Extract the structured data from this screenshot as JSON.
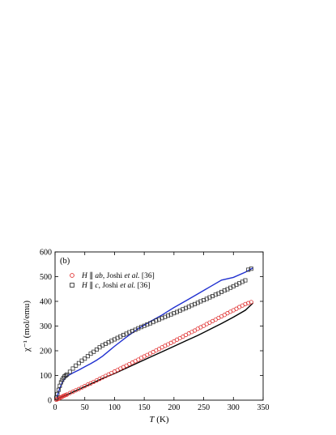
{
  "chart_data": {
    "type": "scatter",
    "panel_label": "(b)",
    "xlabel": {
      "italic": "T",
      "rest": " (K)"
    },
    "ylabel": "χ⁻¹ (mol/emu)",
    "xlim": [
      0,
      350
    ],
    "ylim": [
      0,
      600
    ],
    "xticks": [
      0,
      50,
      100,
      150,
      200,
      250,
      300,
      350
    ],
    "yticks": [
      0,
      100,
      200,
      300,
      400,
      500,
      600
    ],
    "grid": false,
    "legend_position": "top-left",
    "series": [
      {
        "name": "H ∥ ab, Joshi et al. [36]",
        "legend_parts": [
          {
            "text": "H",
            "italic": true
          },
          {
            "text": " ∥ ",
            "italic": false
          },
          {
            "text": "ab",
            "italic": true
          },
          {
            "text": ", Joshi ",
            "italic": false
          },
          {
            "text": "et al.",
            "italic": true
          },
          {
            "text": " [36]",
            "italic": false
          }
        ],
        "marker": "circle",
        "color": "#e03030",
        "x": [
          2,
          4,
          6,
          8,
          10,
          12,
          14,
          16,
          18,
          20,
          25,
          30,
          35,
          40,
          45,
          50,
          55,
          60,
          65,
          70,
          75,
          80,
          85,
          90,
          95,
          100,
          105,
          110,
          115,
          120,
          125,
          130,
          135,
          140,
          145,
          150,
          155,
          160,
          165,
          170,
          175,
          180,
          185,
          190,
          195,
          200,
          205,
          210,
          215,
          220,
          225,
          230,
          235,
          240,
          245,
          250,
          255,
          260,
          265,
          270,
          275,
          280,
          285,
          290,
          295,
          300,
          305,
          310,
          315,
          320,
          325,
          330
        ],
        "y": [
          2,
          4,
          6,
          9,
          12,
          14,
          17,
          19,
          21,
          23,
          29,
          34,
          40,
          45,
          51,
          57,
          63,
          68,
          74,
          80,
          86,
          92,
          98,
          104,
          110,
          116,
          122,
          128,
          134,
          140,
          146,
          152,
          158,
          164,
          171,
          177,
          183,
          189,
          195,
          201,
          207,
          214,
          220,
          226,
          232,
          238,
          245,
          251,
          257,
          264,
          270,
          276,
          282,
          289,
          295,
          301,
          308,
          314,
          320,
          326,
          333,
          339,
          345,
          352,
          358,
          364,
          370,
          377,
          383,
          389,
          393,
          397
        ]
      },
      {
        "name": "H ∥ c, Joshi et al. [36]",
        "legend_parts": [
          {
            "text": "H",
            "italic": true
          },
          {
            "text": " ∥ ",
            "italic": false
          },
          {
            "text": "c",
            "italic": true
          },
          {
            "text": ", Joshi ",
            "italic": false
          },
          {
            "text": "et al.",
            "italic": true
          },
          {
            "text": " [36]",
            "italic": false
          }
        ],
        "marker": "square",
        "color": "#333333",
        "x": [
          2,
          4,
          6,
          8,
          10,
          12,
          14,
          16,
          18,
          20,
          25,
          30,
          35,
          40,
          45,
          50,
          55,
          60,
          65,
          70,
          75,
          80,
          85,
          90,
          95,
          100,
          105,
          110,
          115,
          120,
          125,
          130,
          135,
          140,
          145,
          150,
          155,
          160,
          165,
          170,
          175,
          180,
          185,
          190,
          195,
          200,
          205,
          210,
          215,
          220,
          225,
          230,
          235,
          240,
          245,
          250,
          255,
          260,
          265,
          270,
          275,
          280,
          285,
          290,
          295,
          300,
          305,
          310,
          315,
          320,
          325,
          330
        ],
        "y": [
          10,
          25,
          42,
          58,
          72,
          82,
          90,
          96,
          100,
          104,
          115,
          128,
          140,
          150,
          160,
          168,
          178,
          188,
          196,
          205,
          214,
          222,
          228,
          234,
          240,
          246,
          252,
          258,
          264,
          269,
          275,
          280,
          285,
          291,
          296,
          301,
          306,
          311,
          316,
          322,
          327,
          332,
          337,
          342,
          347,
          352,
          357,
          362,
          368,
          373,
          378,
          384,
          389,
          394,
          400,
          405,
          410,
          416,
          421,
          427,
          432,
          438,
          444,
          449,
          455,
          461,
          467,
          473,
          479,
          485,
          528,
          532
        ]
      }
    ],
    "fits": [
      {
        "color": "#000000",
        "x": [
          5,
          10,
          20,
          40,
          60,
          80,
          100,
          120,
          140,
          160,
          180,
          200,
          220,
          240,
          260,
          280,
          300,
          320,
          333
        ],
        "y": [
          5,
          12,
          22,
          44,
          66,
          88,
          108,
          130,
          152,
          174,
          196,
          218,
          240,
          262,
          286,
          310,
          336,
          364,
          393
        ]
      },
      {
        "color": "#2030d0",
        "x": [
          3,
          6,
          10,
          14,
          18,
          22,
          26,
          30,
          40,
          50,
          60,
          70,
          80,
          90,
          100,
          120,
          140,
          160,
          180,
          200,
          220,
          240,
          260,
          280,
          300,
          320,
          333
        ],
        "y": [
          10,
          35,
          60,
          80,
          92,
          100,
          105,
          110,
          122,
          135,
          148,
          162,
          178,
          198,
          218,
          255,
          290,
          318,
          345,
          375,
          402,
          430,
          458,
          486,
          497,
          518,
          535
        ]
      }
    ]
  }
}
